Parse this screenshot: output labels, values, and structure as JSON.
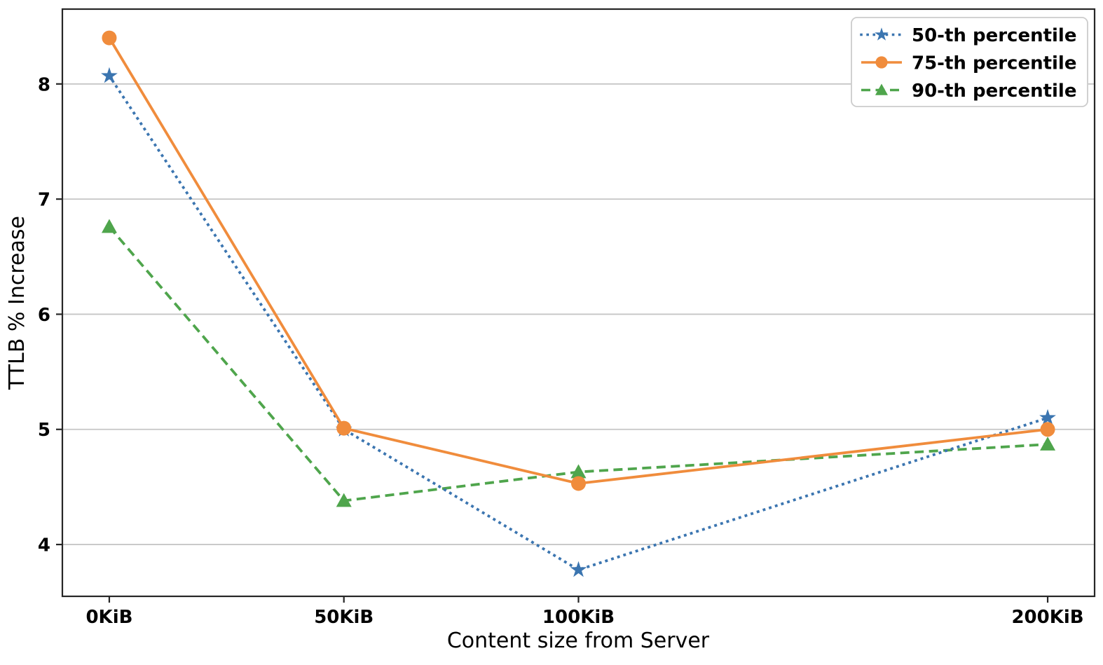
{
  "figure": {
    "background": "#ffffff"
  },
  "chart_data": {
    "type": "line",
    "title": "",
    "xlabel": "Content size from Server",
    "ylabel": "TTLB % Increase",
    "x": [
      0,
      50,
      100,
      200
    ],
    "x_tick_labels": [
      "0KiB",
      "50KiB",
      "100KiB",
      "200KiB"
    ],
    "xlim": [
      -10,
      210
    ],
    "ylim": [
      3.55,
      8.65
    ],
    "yticks": [
      4,
      5,
      6,
      7,
      8
    ],
    "grid": "horizontal",
    "grid_color": "#c6c6c6",
    "spine_color": "#262626",
    "tick_color": "#262626",
    "legend": {
      "position": "upper right",
      "border_color": "#cccccc",
      "background": "#ffffff",
      "entries": [
        "50-th percentile",
        "75-th percentile",
        "90-th percentile"
      ]
    },
    "series": [
      {
        "name": "50-th percentile",
        "color": "#3b75b0",
        "line_style": "dotted",
        "marker": "star",
        "z_order": 2,
        "values": [
          8.07,
          5.0,
          3.78,
          5.1
        ]
      },
      {
        "name": "75-th percentile",
        "color": "#f08c3c",
        "line_style": "solid",
        "marker": "circle",
        "z_order": 3,
        "values": [
          8.4,
          5.01,
          4.53,
          5.0
        ]
      },
      {
        "name": "90-th percentile",
        "color": "#4fa54c",
        "line_style": "dashed",
        "marker": "triangle",
        "z_order": 1,
        "values": [
          6.76,
          4.38,
          4.63,
          4.87
        ]
      }
    ]
  }
}
